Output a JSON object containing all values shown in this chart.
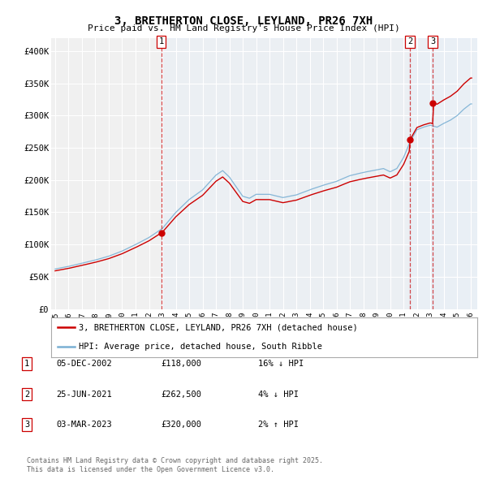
{
  "title": "3, BRETHERTON CLOSE, LEYLAND, PR26 7XH",
  "subtitle": "Price paid vs. HM Land Registry's House Price Index (HPI)",
  "hpi_label": "HPI: Average price, detached house, South Ribble",
  "property_label": "3, BRETHERTON CLOSE, LEYLAND, PR26 7XH (detached house)",
  "footer1": "Contains HM Land Registry data © Crown copyright and database right 2025.",
  "footer2": "This data is licensed under the Open Government Licence v3.0.",
  "transactions": [
    {
      "num": 1,
      "date": "05-DEC-2002",
      "price": "£118,000",
      "hpi_diff": "16% ↓ HPI"
    },
    {
      "num": 2,
      "date": "25-JUN-2021",
      "price": "£262,500",
      "hpi_diff": "4% ↓ HPI"
    },
    {
      "num": 3,
      "date": "03-MAR-2023",
      "price": "£320,000",
      "hpi_diff": "2% ↑ HPI"
    }
  ],
  "ylim": [
    0,
    420000
  ],
  "yticks": [
    0,
    50000,
    100000,
    150000,
    200000,
    250000,
    300000,
    350000,
    400000
  ],
  "ytick_labels": [
    "£0",
    "£50K",
    "£100K",
    "£150K",
    "£200K",
    "£250K",
    "£300K",
    "£350K",
    "£400K"
  ],
  "hpi_color": "#7ab0d4",
  "price_color": "#cc0000",
  "vline_color": "#cc0000",
  "shade_color": "#ddeeff",
  "bg_color": "#ffffff",
  "plot_bg_color": "#f0f0f0",
  "grid_color": "#ffffff"
}
